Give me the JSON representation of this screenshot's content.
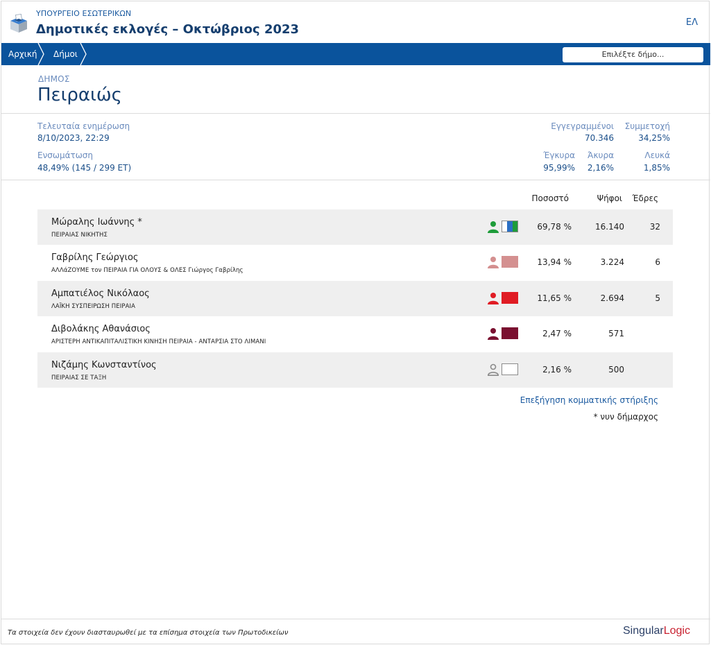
{
  "header": {
    "ministry": "ΥΠΟΥΡΓΕΙΟ ΕΣΩΤΕΡΙΚΩΝ",
    "title": "Δημοτικές εκλογές – Οκτώβριος 2023",
    "lang": "ΕΛ",
    "logo_icon": "ballot-box-icon"
  },
  "nav": {
    "breadcrumbs": [
      "Αρχική",
      "Δήμοι"
    ],
    "select_placeholder": "Επιλέξτε δήμο..."
  },
  "municipality": {
    "label": "ΔΗΜΟΣ",
    "name": "Πειραιώς"
  },
  "stats": {
    "last_update_label": "Τελευταία ενημέρωση",
    "last_update_value": "8/10/2023, 22:29",
    "integration_label": "Ενσωμάτωση",
    "integration_value": "48,49% (145 / 299 ΕΤ)",
    "registered_label": "Εγγεγραμμένοι",
    "registered_value": "70.346",
    "turnout_label": "Συμμετοχή",
    "turnout_value": "34,25%",
    "valid_label": "Έγκυρα",
    "valid_value": "95,99%",
    "invalid_label": "Άκυρα",
    "invalid_value": "2,16%",
    "blank_label": "Λευκά",
    "blank_value": "1,85%"
  },
  "results": {
    "columns": {
      "percent": "Ποσοστό",
      "votes": "Ψήφοι",
      "seats": "Έδρες"
    },
    "rows": [
      {
        "name": "Μώραλης Ιωάννης *",
        "party": "ΠΕΙΡΑΙΑΣ ΝΙΚΗΤΗΣ",
        "percent": "69,78 %",
        "votes": "16.140",
        "seats": "32",
        "person_color": "#1e9c3a",
        "swatch": [
          "#ffffff",
          "#2b6fc4",
          "#1e9c3a"
        ]
      },
      {
        "name": "Γαβρίλης Γεώργιος",
        "party": "ΑΛΛάΖΟΥΜΕ τον ΠΕΙΡΑΙΑ ΓΙΑ ΟΛΟΥΣ & ΟΛΕΣ Γιώργος Γαβρίλης",
        "percent": "13,94 %",
        "votes": "3.224",
        "seats": "6",
        "person_color": "#d49090",
        "swatch": [
          "#d49090"
        ]
      },
      {
        "name": "Αμπατιέλος Νικόλαος",
        "party": "ΛΑΪΚΗ ΣΥΣΠΕΙΡΩΣΗ ΠΕΙΡΑΙΑ",
        "percent": "11,65 %",
        "votes": "2.694",
        "seats": "5",
        "person_color": "#e01c24",
        "swatch": [
          "#e01c24"
        ]
      },
      {
        "name": "Διβολάκης Αθανάσιος",
        "party": "ΑΡΙΣΤΕΡΗ ΑΝΤΙΚΑΠΙΤΑΛΙΣΤΙΚΗ ΚΙΝΗΣΗ ΠΕΙΡΑΙΑ - ΑΝΤΑΡΣΙΑ ΣΤΟ ΛΙΜΑΝΙ",
        "percent": "2,47 %",
        "votes": "571",
        "seats": "",
        "person_color": "#7a1030",
        "swatch": [
          "#7a1030"
        ]
      },
      {
        "name": "Νιζάμης Κωνσταντίνος",
        "party": "ΠΕΙΡΑΙΑΣ ΣΕ ΤΑΞΗ",
        "percent": "2,16 %",
        "votes": "500",
        "seats": "",
        "person_color": "#8a8a8a",
        "swatch": [
          "#ffffff"
        ]
      }
    ]
  },
  "explain_link": "Επεξήγηση κομματικής στήριξης",
  "note": "* νυν δήμαρχος",
  "footer": {
    "disclaimer": "Τα στοιχεία δεν έχουν διασταυρωθεί με τα επίσημα στοιχεία των Πρωτοδικείων",
    "brand_part1": "Singular",
    "brand_part2": "Logic"
  }
}
